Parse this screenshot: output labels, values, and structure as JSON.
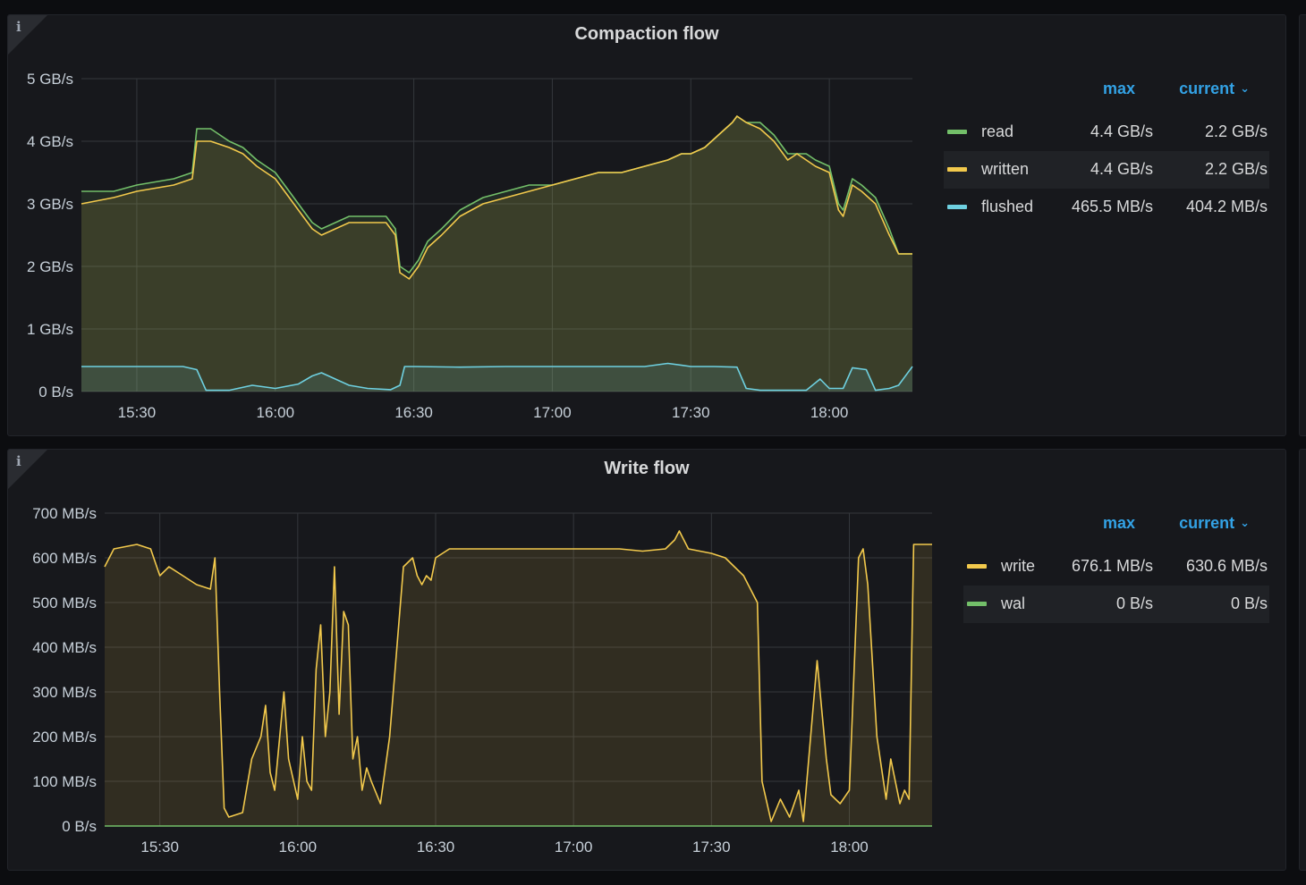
{
  "panels": [
    {
      "title": "Compaction flow",
      "legend": {
        "max_label": "max",
        "current_label": "current",
        "rows": [
          {
            "name": "read",
            "max": "4.4 GB/s",
            "current": "2.2 GB/s",
            "color": "#73bf69"
          },
          {
            "name": "written",
            "max": "4.4 GB/s",
            "current": "2.2 GB/s",
            "color": "#f2c94c"
          },
          {
            "name": "flushed",
            "max": "465.5 MB/s",
            "current": "404.2 MB/s",
            "color": "#6ed0e0"
          }
        ]
      }
    },
    {
      "title": "Write flow",
      "legend": {
        "max_label": "max",
        "current_label": "current",
        "rows": [
          {
            "name": "write",
            "max": "676.1 MB/s",
            "current": "630.6 MB/s",
            "color": "#f2c94c"
          },
          {
            "name": "wal",
            "max": "0 B/s",
            "current": "0 B/s",
            "color": "#73bf69"
          }
        ]
      }
    }
  ],
  "chart_data": [
    {
      "type": "area",
      "title": "Compaction flow",
      "x_unit": "time (HH:MM)",
      "y_unit": "GB/s",
      "ylim": [
        0,
        5
      ],
      "y_ticks": [
        "0 B/s",
        "1 GB/s",
        "2 GB/s",
        "3 GB/s",
        "4 GB/s",
        "5 GB/s"
      ],
      "x_range": [
        "15:18",
        "18:18"
      ],
      "x_ticks": [
        "15:30",
        "16:00",
        "16:30",
        "17:00",
        "17:30",
        "18:00"
      ],
      "grid": true,
      "legend_placement": "right",
      "series": [
        {
          "name": "read",
          "color": "#73bf69",
          "x": [
            "15:18",
            "15:25",
            "15:30",
            "15:38",
            "15:42",
            "15:43",
            "15:46",
            "15:50",
            "15:53",
            "15:56",
            "16:00",
            "16:03",
            "16:06",
            "16:08",
            "16:10",
            "16:13",
            "16:16",
            "16:20",
            "16:24",
            "16:26",
            "16:27",
            "16:29",
            "16:31",
            "16:33",
            "16:36",
            "16:40",
            "16:45",
            "16:50",
            "16:55",
            "17:00",
            "17:05",
            "17:10",
            "17:15",
            "17:20",
            "17:25",
            "17:28",
            "17:30",
            "17:33",
            "17:36",
            "17:39",
            "17:40",
            "17:42",
            "17:45",
            "17:48",
            "17:51",
            "17:53",
            "17:55",
            "17:57",
            "18:00",
            "18:02",
            "18:03",
            "18:05",
            "18:07",
            "18:10",
            "18:13",
            "18:15",
            "18:18"
          ],
          "y": [
            3.2,
            3.2,
            3.3,
            3.4,
            3.5,
            4.2,
            4.2,
            4.0,
            3.9,
            3.7,
            3.5,
            3.2,
            2.9,
            2.7,
            2.6,
            2.7,
            2.8,
            2.8,
            2.8,
            2.6,
            2.0,
            1.9,
            2.1,
            2.4,
            2.6,
            2.9,
            3.1,
            3.2,
            3.3,
            3.3,
            3.4,
            3.5,
            3.5,
            3.6,
            3.7,
            3.8,
            3.8,
            3.9,
            4.1,
            4.3,
            4.4,
            4.3,
            4.3,
            4.1,
            3.8,
            3.8,
            3.8,
            3.7,
            3.6,
            3.0,
            2.9,
            3.4,
            3.3,
            3.1,
            2.6,
            2.2,
            2.2
          ]
        },
        {
          "name": "written",
          "color": "#f2c94c",
          "x": [
            "15:18",
            "15:25",
            "15:30",
            "15:38",
            "15:42",
            "15:43",
            "15:46",
            "15:50",
            "15:53",
            "15:56",
            "16:00",
            "16:03",
            "16:06",
            "16:08",
            "16:10",
            "16:13",
            "16:16",
            "16:20",
            "16:24",
            "16:26",
            "16:27",
            "16:29",
            "16:31",
            "16:33",
            "16:36",
            "16:40",
            "16:45",
            "16:50",
            "16:55",
            "17:00",
            "17:05",
            "17:10",
            "17:15",
            "17:20",
            "17:25",
            "17:28",
            "17:30",
            "17:33",
            "17:36",
            "17:39",
            "17:40",
            "17:42",
            "17:45",
            "17:48",
            "17:51",
            "17:53",
            "17:55",
            "17:57",
            "18:00",
            "18:02",
            "18:03",
            "18:05",
            "18:07",
            "18:10",
            "18:13",
            "18:15",
            "18:18"
          ],
          "y": [
            3.0,
            3.1,
            3.2,
            3.3,
            3.4,
            4.0,
            4.0,
            3.9,
            3.8,
            3.6,
            3.4,
            3.1,
            2.8,
            2.6,
            2.5,
            2.6,
            2.7,
            2.7,
            2.7,
            2.5,
            1.9,
            1.8,
            2.0,
            2.3,
            2.5,
            2.8,
            3.0,
            3.1,
            3.2,
            3.3,
            3.4,
            3.5,
            3.5,
            3.6,
            3.7,
            3.8,
            3.8,
            3.9,
            4.1,
            4.3,
            4.4,
            4.3,
            4.2,
            4.0,
            3.7,
            3.8,
            3.7,
            3.6,
            3.5,
            2.9,
            2.8,
            3.3,
            3.2,
            3.0,
            2.5,
            2.2,
            2.2
          ]
        },
        {
          "name": "flushed",
          "color": "#6ed0e0",
          "x": [
            "15:18",
            "15:30",
            "15:40",
            "15:43",
            "15:45",
            "15:50",
            "15:55",
            "16:00",
            "16:05",
            "16:08",
            "16:10",
            "16:13",
            "16:16",
            "16:20",
            "16:25",
            "16:27",
            "16:28",
            "16:30",
            "16:40",
            "16:50",
            "17:00",
            "17:10",
            "17:20",
            "17:25",
            "17:30",
            "17:35",
            "17:40",
            "17:42",
            "17:45",
            "17:50",
            "17:55",
            "17:58",
            "18:00",
            "18:03",
            "18:05",
            "18:08",
            "18:10",
            "18:13",
            "18:15",
            "18:18"
          ],
          "y": [
            0.4,
            0.4,
            0.4,
            0.35,
            0.02,
            0.02,
            0.1,
            0.05,
            0.12,
            0.25,
            0.3,
            0.2,
            0.1,
            0.05,
            0.03,
            0.1,
            0.4,
            0.4,
            0.39,
            0.4,
            0.4,
            0.4,
            0.4,
            0.45,
            0.4,
            0.4,
            0.39,
            0.05,
            0.02,
            0.02,
            0.02,
            0.2,
            0.05,
            0.05,
            0.38,
            0.35,
            0.02,
            0.05,
            0.1,
            0.4
          ]
        }
      ]
    },
    {
      "type": "area",
      "title": "Write flow",
      "x_unit": "time (HH:MM)",
      "y_unit": "MB/s",
      "ylim": [
        0,
        700
      ],
      "y_ticks": [
        "0 B/s",
        "100 MB/s",
        "200 MB/s",
        "300 MB/s",
        "400 MB/s",
        "500 MB/s",
        "600 MB/s",
        "700 MB/s"
      ],
      "x_range": [
        "15:18",
        "18:18"
      ],
      "x_ticks": [
        "15:30",
        "16:00",
        "16:30",
        "17:00",
        "17:30",
        "18:00"
      ],
      "grid": true,
      "legend_placement": "right",
      "series": [
        {
          "name": "write",
          "color": "#f2c94c",
          "x": [
            "15:18",
            "15:20",
            "15:25",
            "15:28",
            "15:30",
            "15:32",
            "15:35",
            "15:38",
            "15:41",
            "15:42",
            "15:43",
            "15:44",
            "15:45",
            "15:48",
            "15:50",
            "15:52",
            "15:53",
            "15:54",
            "15:55",
            "15:57",
            "15:58",
            "16:00",
            "16:01",
            "16:02",
            "16:03",
            "16:04",
            "16:05",
            "16:06",
            "16:07",
            "16:08",
            "16:09",
            "16:10",
            "16:11",
            "16:12",
            "16:13",
            "16:14",
            "16:15",
            "16:16",
            "16:18",
            "16:20",
            "16:23",
            "16:25",
            "16:26",
            "16:27",
            "16:28",
            "16:29",
            "16:30",
            "16:33",
            "16:36",
            "16:40",
            "16:50",
            "17:00",
            "17:10",
            "17:15",
            "17:20",
            "17:22",
            "17:23",
            "17:25",
            "17:30",
            "17:33",
            "17:35",
            "17:37",
            "17:38",
            "17:40",
            "17:41",
            "17:43",
            "17:45",
            "17:47",
            "17:49",
            "17:50",
            "17:53",
            "17:55",
            "17:56",
            "17:58",
            "18:00",
            "18:02",
            "18:03",
            "18:04",
            "18:06",
            "18:08",
            "18:09",
            "18:11",
            "18:12",
            "18:13",
            "18:14",
            "18:15",
            "18:16",
            "18:17",
            "18:18"
          ],
          "y": [
            580,
            620,
            630,
            620,
            560,
            580,
            560,
            540,
            530,
            600,
            300,
            40,
            20,
            30,
            150,
            200,
            270,
            120,
            80,
            300,
            150,
            60,
            200,
            100,
            80,
            350,
            450,
            200,
            300,
            580,
            250,
            480,
            450,
            150,
            200,
            80,
            130,
            100,
            50,
            200,
            580,
            600,
            560,
            540,
            560,
            550,
            600,
            620,
            620,
            620,
            620,
            620,
            620,
            615,
            620,
            640,
            660,
            620,
            610,
            600,
            580,
            560,
            540,
            500,
            100,
            10,
            60,
            20,
            80,
            10,
            370,
            150,
            70,
            50,
            80,
            600,
            620,
            540,
            200,
            60,
            150,
            50,
            80,
            60,
            630,
            630,
            630,
            630,
            630
          ]
        },
        {
          "name": "wal",
          "color": "#73bf69",
          "x": [
            "15:18",
            "18:18"
          ],
          "y": [
            0,
            0
          ]
        }
      ]
    }
  ]
}
